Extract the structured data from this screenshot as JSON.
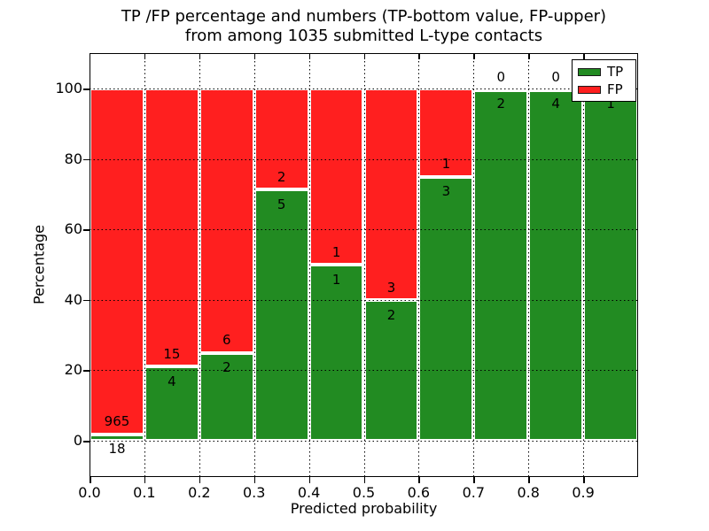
{
  "chart_data": {
    "type": "bar",
    "subtype": "stacked-percentage-histogram",
    "title_line1": "TP /FP percentage and numbers (TP-bottom value, FP-upper)",
    "title_line2": "from among 1035 submitted L-type contacts",
    "xlabel": "Predicted probability",
    "ylabel": "Percentage",
    "total_contacts": 1035,
    "x_tick_labels": [
      "0.0",
      "0.1",
      "0.2",
      "0.3",
      "0.4",
      "0.5",
      "0.6",
      "0.7",
      "0.8",
      "0.9"
    ],
    "y_ticks": [
      0,
      20,
      40,
      60,
      80,
      100
    ],
    "y_tick_labels": [
      "0",
      "20",
      "40",
      "60",
      "80",
      "100"
    ],
    "ylim": [
      -10.3,
      110.1
    ],
    "xlim": [
      0.0,
      1.0
    ],
    "bin_width": 0.1,
    "grid": "dotted-black-over-bars",
    "legend_position": "upper-right-inside",
    "bins": [
      {
        "range": "0.0-0.1",
        "tp": 18,
        "fp": 965
      },
      {
        "range": "0.1-0.2",
        "tp": 4,
        "fp": 15
      },
      {
        "range": "0.2-0.3",
        "tp": 2,
        "fp": 6
      },
      {
        "range": "0.3-0.4",
        "tp": 5,
        "fp": 2
      },
      {
        "range": "0.4-0.5",
        "tp": 1,
        "fp": 1
      },
      {
        "range": "0.5-0.6",
        "tp": 2,
        "fp": 3
      },
      {
        "range": "0.6-0.7",
        "tp": 3,
        "fp": 1
      },
      {
        "range": "0.7-0.8",
        "tp": 2,
        "fp": 0
      },
      {
        "range": "0.8-0.9",
        "tp": 4,
        "fp": 0
      },
      {
        "range": "0.9-1.0",
        "tp": 1,
        "fp": 0
      }
    ],
    "legend": [
      {
        "label": "TP",
        "color": "#228b22"
      },
      {
        "label": "FP",
        "color": "#ff1f1f"
      }
    ],
    "colors": {
      "tp": "#228b22",
      "fp": "#ff1f1f",
      "bar_edge": "#ffffff",
      "grid": "#000000"
    }
  }
}
